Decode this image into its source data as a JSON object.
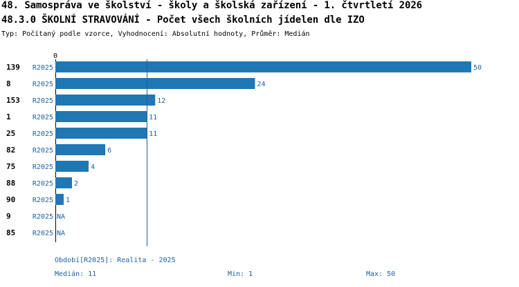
{
  "header": {
    "title": "48. Samospráva ve školství - školy a školská zařízení - 1. čtvrtletí 2026",
    "subtitle": "48.3.0 ŠKOLNÍ STRAVOVÁNÍ - Počet všech školních jídelen dle IZO",
    "info": "Typ: Počítaný podle vzorce, Vyhodnocení: Absolutní hodnoty, Průměr: Medián"
  },
  "chart_data": {
    "type": "bar",
    "orientation": "horizontal",
    "title": "48.3.0 ŠKOLNÍ STRAVOVÁNÍ - Počet všech školních jídelen dle IZO",
    "axis_zero_label": "0",
    "xlim": [
      0,
      50
    ],
    "median_line": 11,
    "series_label": "R2025",
    "categories": [
      "139",
      "8",
      "153",
      "1",
      "25",
      "82",
      "75",
      "88",
      "90",
      "9",
      "85"
    ],
    "values": [
      50,
      24,
      12,
      11,
      11,
      6,
      4,
      2,
      1,
      null,
      null
    ],
    "value_labels": [
      "50",
      "24",
      "12",
      "11",
      "11",
      "6",
      "4",
      "2",
      "1",
      "NA",
      "NA"
    ],
    "bar_color": "#1f77b4"
  },
  "footer": {
    "period": "Období[R2025]: Realita - 2025",
    "median": "Medián: 11",
    "min": "Min: 1",
    "max": "Max: 50"
  }
}
